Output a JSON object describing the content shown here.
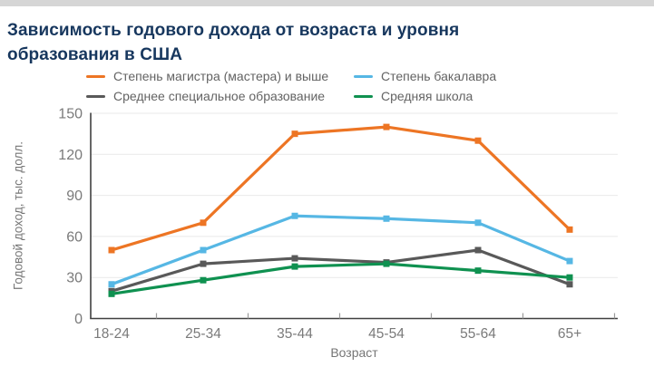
{
  "page": {
    "background": "#ffffff",
    "top_bar_color": "#d6d6d6"
  },
  "title": {
    "line1": "Зависимость годового дохода от возраста и уровня",
    "line2": "образования в США",
    "color": "#17375e"
  },
  "chart_data": {
    "type": "line",
    "title": "Зависимость годового дохода от возраста и уровня образования в США",
    "xlabel": "Возраст",
    "ylabel": "Годовой доход, тыс. долл.",
    "categories": [
      "18-24",
      "25-34",
      "35-44",
      "45-54",
      "55-64",
      "65+"
    ],
    "series": [
      {
        "name": "Степень магистра (мастера) и выше",
        "color": "#ed7524",
        "values": [
          50,
          70,
          135,
          140,
          130,
          65
        ]
      },
      {
        "name": "Степень бакалавра",
        "color": "#56b7e4",
        "values": [
          25,
          50,
          75,
          73,
          70,
          42
        ]
      },
      {
        "name": "Среднее специальное образование",
        "color": "#595959",
        "values": [
          20,
          40,
          44,
          41,
          50,
          25
        ]
      },
      {
        "name": "Средняя школа",
        "color": "#0f9150",
        "values": [
          18,
          28,
          38,
          40,
          35,
          30
        ]
      }
    ],
    "ylim": [
      0,
      150
    ],
    "yticks": [
      0,
      30,
      60,
      90,
      120,
      150
    ],
    "grid": true,
    "legend_position": "top",
    "marker": "square"
  }
}
